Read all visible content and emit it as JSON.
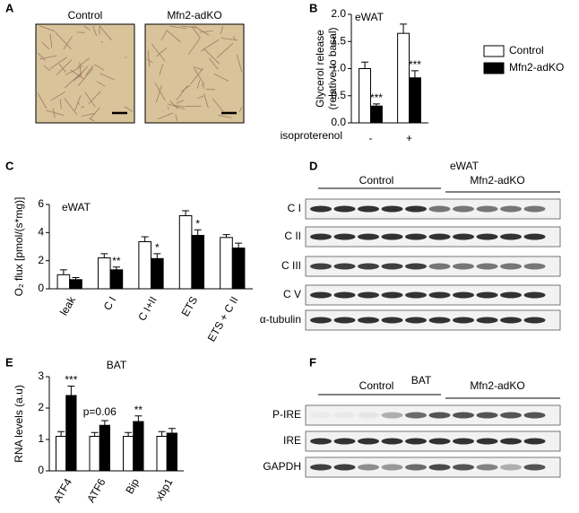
{
  "chart_data": [
    {
      "type": "bar",
      "title": "eWAT",
      "y_label": [
        "Glycerol release",
        "(relative to basal)"
      ],
      "x_label": "isoproterenol",
      "categories": [
        "-",
        "+"
      ],
      "series": [
        {
          "name": "Control",
          "color": "#ffffff",
          "values": [
            1.0,
            1.65
          ],
          "errors": [
            0.12,
            0.17
          ],
          "annotations": [
            null,
            null
          ]
        },
        {
          "name": "Mfn2-adKO",
          "color": "#000000",
          "values": [
            0.31,
            0.83
          ],
          "errors": [
            0.04,
            0.13
          ],
          "annotations": [
            "***",
            "***"
          ]
        }
      ],
      "ylim": [
        0,
        2.0
      ],
      "yticks": [
        {
          "value": 0,
          "label": "0.0"
        },
        0.5,
        {
          "value": 1.0,
          "label": "1.0"
        },
        1.5,
        {
          "value": 2.0,
          "label": "2.0"
        }
      ],
      "legend": "right"
    },
    {
      "type": "bar",
      "title": "eWAT",
      "y_label": "O₂ flux [pmol/(s*mg)]",
      "categories": [
        "leak",
        "C I",
        "C I+II",
        "ETS",
        "ETS + C II"
      ],
      "series": [
        {
          "color": "#ffffff",
          "values": [
            1.0,
            2.2,
            3.35,
            5.2,
            3.65
          ],
          "errors": [
            0.35,
            0.3,
            0.35,
            0.35,
            0.2
          ],
          "annotations": [
            null,
            null,
            null,
            null,
            null
          ]
        },
        {
          "color": "#000000",
          "values": [
            0.65,
            1.35,
            2.15,
            3.8,
            2.9
          ],
          "errors": [
            0.15,
            0.2,
            0.35,
            0.4,
            0.35
          ],
          "annotations": [
            null,
            "**",
            "*",
            "*",
            null
          ]
        }
      ],
      "ylim": [
        0,
        6
      ],
      "yticks": [
        0,
        2,
        4,
        6
      ]
    },
    {
      "type": "bar",
      "title": "BAT",
      "y_label": "RNA levels  (a.u)",
      "categories": [
        "ATF4",
        "ATF6",
        "Bip",
        "xbp1"
      ],
      "series": [
        {
          "color": "#ffffff",
          "values": [
            1.1,
            1.1,
            1.1,
            1.1
          ],
          "errors": [
            0.15,
            0.12,
            0.12,
            0.15
          ],
          "annotations": [
            null,
            null,
            null,
            null
          ]
        },
        {
          "color": "#000000",
          "values": [
            2.4,
            1.45,
            1.57,
            1.2
          ],
          "errors": [
            0.3,
            0.15,
            0.18,
            0.15
          ],
          "annotations": [
            "***",
            "p=0.06",
            "**",
            null
          ]
        }
      ],
      "ylim": [
        0,
        3
      ],
      "yticks": [
        0,
        1,
        2,
        3
      ]
    }
  ],
  "panels": {
    "letters": [
      "A",
      "B",
      "C",
      "D",
      "E",
      "F"
    ],
    "histology": {
      "labels": [
        "Control",
        "Mfn2-adKO"
      ]
    },
    "blot_ewat": {
      "title": "eWAT",
      "groups": [
        "Control",
        "Mfn2-adKO"
      ],
      "rows": [
        "C I",
        "C II",
        "C III",
        "C V",
        "α-tubulin"
      ]
    },
    "blot_bat": {
      "title": "BAT",
      "groups": [
        "Control",
        "Mfn2-adKO"
      ],
      "rows": [
        "P-IRE",
        "IRE",
        "GAPDH"
      ]
    }
  }
}
